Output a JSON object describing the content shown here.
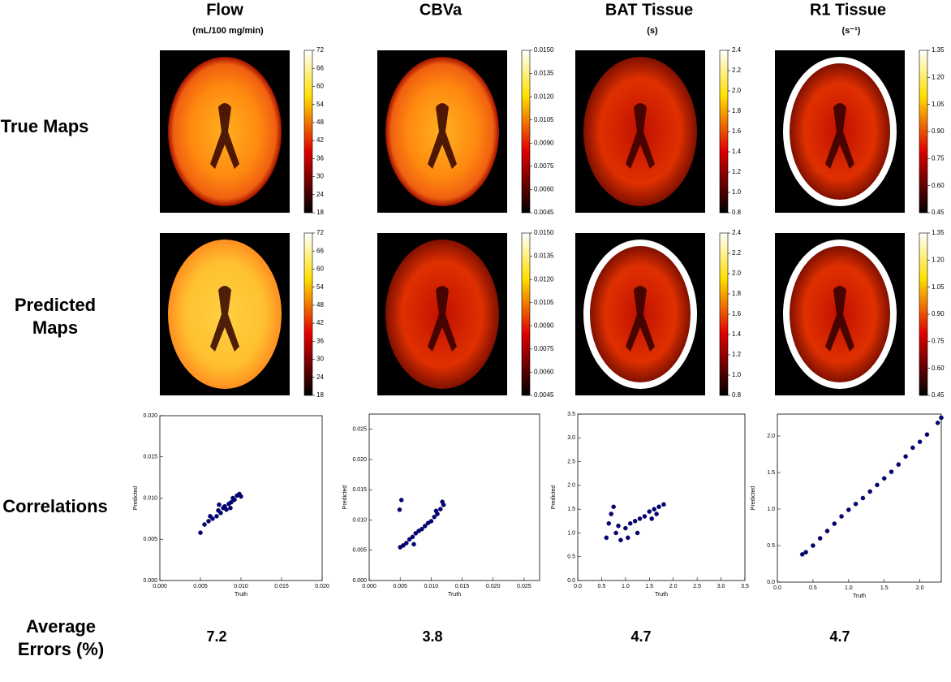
{
  "row_labels": [
    "True Maps",
    "Predicted Maps",
    "Correlations",
    "Average Errors (%)"
  ],
  "columns": [
    {
      "title": "Flow",
      "unit": "(mL/100 mg/min)",
      "colorbar_ticks": [
        18,
        24,
        30,
        36,
        42,
        48,
        54,
        60,
        66,
        72
      ],
      "average_error": 7.2
    },
    {
      "title": "CBVa",
      "colorbar_ticks": [
        0.0045,
        {
          "value": 0.006,
          "label": "0.0060"
        },
        0.0075,
        {
          "value": 0.009,
          "label": "0.0090"
        },
        0.0105,
        {
          "value": 0.012,
          "label": "0.0120"
        },
        0.0135,
        {
          "value": 0.015,
          "label": "0.0150"
        }
      ],
      "average_error": 3.8
    },
    {
      "title": "BAT Tissue",
      "unit": "(s)",
      "colorbar_ticks": [
        0.8,
        {
          "value": 1,
          "label": "1.0"
        },
        1.2,
        1.4,
        1.6,
        1.8,
        {
          "value": 2,
          "label": "2.0"
        },
        2.2,
        2.4
      ],
      "average_error": 4.7
    },
    {
      "title": "R1 Tissue",
      "unit": "(s⁻¹)",
      "colorbar_ticks": [
        0.45,
        {
          "value": 0.6,
          "label": "0.60"
        },
        0.75,
        {
          "value": 0.9,
          "label": "0.90"
        },
        1.05,
        {
          "value": 1.2,
          "label": "1.20"
        },
        1.35
      ],
      "average_error": 4.7
    }
  ],
  "chart_data": [
    {
      "type": "scatter",
      "x_label": "Truth",
      "y_label": "Predicted",
      "color": "#000080",
      "x": [
        0.005,
        0.0055,
        0.006,
        0.0065,
        0.007,
        0.0072,
        0.0075,
        0.0078,
        0.008,
        0.0082,
        0.0085,
        0.0088,
        0.009,
        0.0092,
        0.0095,
        0.0098,
        0.01,
        0.0062,
        0.0087,
        0.0073
      ],
      "values": [
        0.0058,
        0.0068,
        0.0072,
        0.0075,
        0.0078,
        0.0085,
        0.0082,
        0.0088,
        0.009,
        0.0086,
        0.0093,
        0.0095,
        0.01,
        0.0098,
        0.0103,
        0.0105,
        0.0102,
        0.0078,
        0.0088,
        0.0092
      ],
      "xlim": [
        0,
        0.02
      ],
      "ylim": [
        0,
        0.02
      ],
      "xticks": [
        {
          "value": 0,
          "label": "0.000"
        },
        0.005,
        {
          "value": 0.01,
          "label": "0.010"
        },
        0.015,
        {
          "value": 0.02,
          "label": "0.020"
        }
      ],
      "yticks": [
        {
          "value": 0,
          "label": "0.000"
        },
        0.005,
        {
          "value": 0.01,
          "label": "0.010"
        },
        0.015,
        {
          "value": 0.02,
          "label": "0.020"
        }
      ]
    },
    {
      "type": "scatter",
      "x_label": "Truth",
      "y_label": "Predicted",
      "color": "#000080",
      "x": [
        0.005,
        0.0052,
        0.0055,
        0.006,
        0.0065,
        0.007,
        0.0075,
        0.008,
        0.0085,
        0.009,
        0.0095,
        0.01,
        0.0105,
        0.011,
        0.0115,
        0.012,
        0.0118,
        0.0108,
        0.0049,
        0.0072
      ],
      "values": [
        0.0055,
        0.0133,
        0.0058,
        0.0062,
        0.0068,
        0.0072,
        0.0078,
        0.0082,
        0.0085,
        0.009,
        0.0095,
        0.0098,
        0.0105,
        0.011,
        0.0118,
        0.0125,
        0.013,
        0.0115,
        0.0117,
        0.006
      ],
      "xlim": [
        0,
        0.0275
      ],
      "ylim": [
        0,
        0.0275
      ],
      "xticks": [
        {
          "value": 0,
          "label": "0.000"
        },
        0.005,
        {
          "value": 0.01,
          "label": "0.010"
        },
        0.015,
        {
          "value": 0.02,
          "label": "0.020"
        },
        0.025
      ],
      "yticks": [
        {
          "value": 0,
          "label": "0.000"
        },
        0.005,
        {
          "value": 0.01,
          "label": "0.010"
        },
        0.015,
        {
          "value": 0.02,
          "label": "0.020"
        },
        0.025
      ]
    },
    {
      "type": "scatter",
      "x_label": "Truth",
      "y_label": "Predicted",
      "color": "#000080",
      "x": [
        0.6,
        0.65,
        0.7,
        0.8,
        0.9,
        1.0,
        1.1,
        1.2,
        1.3,
        1.4,
        1.5,
        1.6,
        1.7,
        1.8,
        0.75,
        1.05,
        1.25,
        1.55,
        0.85,
        1.65
      ],
      "values": [
        0.9,
        1.2,
        1.4,
        1.0,
        0.85,
        1.1,
        1.2,
        1.25,
        1.3,
        1.35,
        1.45,
        1.5,
        1.55,
        1.6,
        1.55,
        0.9,
        1.0,
        1.3,
        1.15,
        1.4
      ],
      "xlim": [
        0,
        3.5
      ],
      "ylim": [
        0,
        3.5
      ],
      "xticks": [
        {
          "value": 0,
          "label": "0.0"
        },
        0.5,
        {
          "value": 1,
          "label": "1.0"
        },
        1.5,
        {
          "value": 2,
          "label": "2.0"
        },
        2.5,
        {
          "value": 3,
          "label": "3.0"
        },
        3.5
      ],
      "yticks": [
        {
          "value": 0,
          "label": "0.0"
        },
        0.5,
        {
          "value": 1,
          "label": "1.0"
        },
        1.5,
        {
          "value": 2,
          "label": "2.0"
        },
        2.5,
        {
          "value": 3,
          "label": "3.0"
        },
        3.5
      ]
    },
    {
      "type": "scatter",
      "x_label": "Truth",
      "y_label": "Predicted",
      "color": "#000080",
      "x": [
        0.35,
        0.4,
        0.5,
        0.6,
        0.7,
        0.8,
        0.9,
        1.0,
        1.1,
        1.2,
        1.3,
        1.4,
        1.5,
        1.6,
        1.7,
        1.8,
        1.9,
        2.0,
        2.1,
        2.25,
        2.3
      ],
      "values": [
        0.38,
        0.41,
        0.5,
        0.6,
        0.7,
        0.8,
        0.9,
        0.99,
        1.07,
        1.15,
        1.24,
        1.33,
        1.42,
        1.51,
        1.61,
        1.72,
        1.84,
        1.92,
        2.02,
        2.18,
        2.25
      ],
      "xlim": [
        0,
        2.3
      ],
      "ylim": [
        0,
        2.3
      ],
      "xticks": [
        {
          "value": 0,
          "label": "0.0"
        },
        0.5,
        {
          "value": 1,
          "label": "1.0"
        },
        1.5,
        {
          "value": 2,
          "label": "2.0"
        }
      ],
      "yticks": [
        {
          "value": 0,
          "label": "0.0"
        },
        0.5,
        {
          "value": 1,
          "label": "1.0"
        },
        1.5,
        {
          "value": 2,
          "label": "2.0"
        }
      ]
    }
  ]
}
